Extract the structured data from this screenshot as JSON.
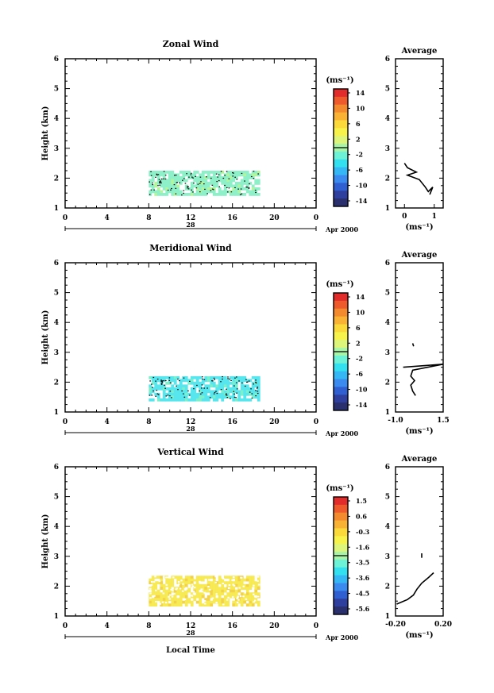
{
  "panels": [
    {
      "title": "Zonal Wind",
      "ylabel": "Height (km)",
      "yticks": [
        "1",
        "2",
        "3",
        "4",
        "5",
        "6"
      ],
      "xticks": [
        "0",
        "4",
        "8",
        "12",
        "16",
        "20",
        "0"
      ],
      "date_day": "28",
      "date_month": "Apr 2000",
      "unit": "(ms⁻¹)",
      "cb_labels": [
        "14",
        "10",
        "6",
        "2",
        "-2",
        "-6",
        "-10",
        "-14"
      ],
      "avg_title": "Average",
      "avg_xticks": [
        "0",
        "1"
      ],
      "avg_xlabel": "(ms⁻¹)"
    },
    {
      "title": "Meridional Wind",
      "ylabel": "Height (km)",
      "yticks": [
        "1",
        "2",
        "3",
        "4",
        "5",
        "6"
      ],
      "xticks": [
        "0",
        "4",
        "8",
        "12",
        "16",
        "20",
        "0"
      ],
      "date_day": "28",
      "date_month": "Apr 2000",
      "unit": "(ms⁻¹)",
      "cb_labels": [
        "14",
        "10",
        "6",
        "2",
        "-2",
        "-6",
        "-10",
        "-14"
      ],
      "avg_title": "Average",
      "avg_xticks": [
        "-1.0",
        "1.5"
      ],
      "avg_xlabel": "(ms⁻¹)"
    },
    {
      "title": "Vertical Wind",
      "ylabel": "Height (km)",
      "yticks": [
        "1",
        "2",
        "3",
        "4",
        "5",
        "6"
      ],
      "xticks": [
        "0",
        "4",
        "8",
        "12",
        "16",
        "20",
        "0"
      ],
      "date_day": "28",
      "date_month": "Apr 2000",
      "unit": "(ms⁻¹)",
      "cb_labels": [
        "1.5",
        "0.6",
        "-0.3",
        "-1.6",
        "-3.5",
        "-3.6",
        "-4.5",
        "-5.6"
      ],
      "avg_title": "Average",
      "avg_xticks": [
        "-0.20",
        "0.20"
      ],
      "avg_xlabel": "(ms⁻¹)"
    }
  ],
  "bottom_xlabel": "Local Time",
  "colors": {
    "scale": [
      "#2a2f6e",
      "#2e3f9e",
      "#2f5fd0",
      "#3a8af0",
      "#35b7f5",
      "#33e0f0",
      "#6cf2d6",
      "#a8f5a8",
      "#dcf57a",
      "#f7f34a",
      "#fcd93a",
      "#f9b233",
      "#f48a2e",
      "#ee5a2c",
      "#e22b2b"
    ],
    "zonal_fill": "#8ef0c8",
    "meridional_fill": "#57e6ee",
    "vertical_fill": "#f7ea55"
  },
  "chart_data": [
    {
      "type": "heatmap",
      "title": "Zonal Wind",
      "xlabel": "",
      "ylabel": "Height (km)",
      "xlim": [
        0,
        24
      ],
      "ylim": [
        1,
        6
      ],
      "data_extent_hours": [
        8,
        18.5
      ],
      "data_extent_km": [
        1.45,
        2.25
      ],
      "colorbar_range": [
        -14,
        14
      ],
      "average_profile": {
        "xlim": [
          -0.3,
          1.3
        ],
        "points": [
          [
            0,
            2.5
          ],
          [
            0.1,
            2.35
          ],
          [
            0.4,
            2.2
          ],
          [
            0.1,
            2.1
          ],
          [
            0.5,
            1.95
          ],
          [
            0.7,
            1.7
          ],
          [
            0.8,
            1.55
          ],
          [
            0.95,
            1.7
          ],
          [
            0.85,
            1.45
          ]
        ]
      }
    },
    {
      "type": "heatmap",
      "title": "Meridional Wind",
      "xlabel": "",
      "ylabel": "Height (km)",
      "xlim": [
        0,
        24
      ],
      "ylim": [
        1,
        6
      ],
      "data_extent_hours": [
        8,
        18.5
      ],
      "data_extent_km": [
        1.45,
        2.2
      ],
      "colorbar_range": [
        -14,
        14
      ],
      "average_profile": {
        "xlim": [
          -1.0,
          1.5
        ],
        "points": [
          [
            -0.6,
            2.5
          ],
          [
            1.5,
            2.6
          ],
          [
            -0.1,
            2.4
          ],
          [
            -0.2,
            2.2
          ],
          [
            0.0,
            2.05
          ],
          [
            -0.2,
            1.9
          ],
          [
            -0.1,
            1.7
          ],
          [
            0.05,
            1.55
          ]
        ],
        "segment_upper": [
          [
            -0.1,
            3.3
          ],
          [
            -0.05,
            3.2
          ]
        ]
      }
    },
    {
      "type": "heatmap",
      "title": "Vertical Wind",
      "xlabel": "Local Time",
      "ylabel": "Height (km)",
      "xlim": [
        0,
        24
      ],
      "ylim": [
        1,
        6
      ],
      "data_extent_hours": [
        8,
        18.5
      ],
      "data_extent_km": [
        1.4,
        2.35
      ],
      "colorbar_range": [
        -5.6,
        1.5
      ],
      "average_profile": {
        "xlim": [
          -0.2,
          0.2
        ],
        "points": [
          [
            0.12,
            2.45
          ],
          [
            0.08,
            2.3
          ],
          [
            0.02,
            2.1
          ],
          [
            -0.02,
            1.9
          ],
          [
            -0.05,
            1.7
          ],
          [
            -0.1,
            1.55
          ],
          [
            -0.19,
            1.4
          ]
        ],
        "segment_upper": [
          [
            0.02,
            3.1
          ],
          [
            0.02,
            2.95
          ]
        ]
      }
    }
  ]
}
